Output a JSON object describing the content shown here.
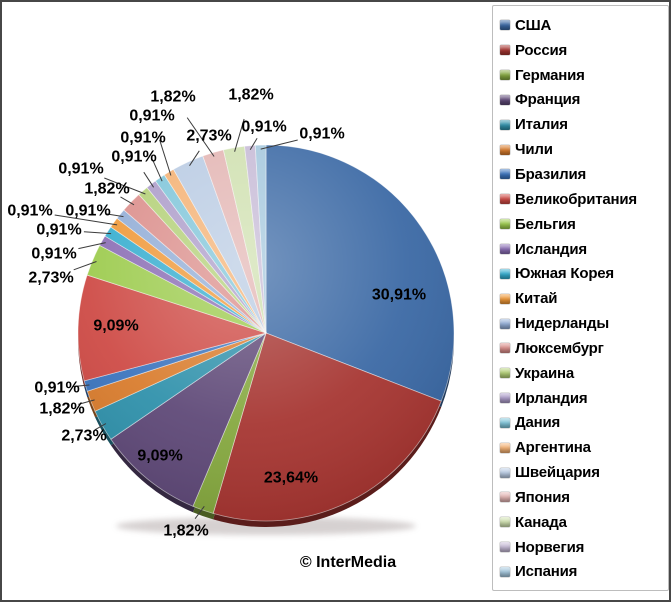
{
  "chart_data": {
    "type": "pie",
    "title": "",
    "legend_position": "right",
    "start_angle_deg": 0,
    "direction": "clockwise",
    "value_format": "percent_comma_decimal",
    "categories": [
      "США",
      "Россия",
      "Германия",
      "Франция",
      "Италия",
      "Чили",
      "Бразилия",
      "Великобритания",
      "Бельгия",
      "Исландия",
      "Южная Корея",
      "Китай",
      "Нидерланды",
      "Люксембург",
      "Украина",
      "Ирландия",
      "Дания",
      "Аргентина",
      "Швейцария",
      "Япония",
      "Канада",
      "Норвегия",
      "Испания"
    ],
    "values": [
      30.91,
      23.64,
      1.82,
      9.09,
      2.73,
      1.82,
      0.91,
      9.09,
      2.73,
      0.91,
      0.91,
      0.91,
      0.91,
      1.82,
      0.91,
      0.91,
      0.91,
      0.91,
      2.73,
      1.82,
      1.82,
      0.91,
      0.91
    ],
    "labels": [
      "30,91%",
      "23,64%",
      "1,82%",
      "9,09%",
      "2,73%",
      "1,82%",
      "0,91%",
      "9,09%",
      "2,73%",
      "0,91%",
      "0,91%",
      "0,91%",
      "0,91%",
      "1,82%",
      "0,91%",
      "0,91%",
      "0,91%",
      "0,91%",
      "2,73%",
      "1,82%",
      "1,82%",
      "0,91%",
      "0,91%"
    ],
    "colors": [
      "#3A68A4",
      "#A63531",
      "#85A83F",
      "#5E4877",
      "#2F91AB",
      "#D97C2D",
      "#3B74BE",
      "#CE4A45",
      "#9CCB4D",
      "#8A6DB4",
      "#35ADCF",
      "#EF9838",
      "#92ADD6",
      "#DB8E8B",
      "#B3D077",
      "#AC9CC9",
      "#7FC5D9",
      "#F4B173",
      "#B9CBE3",
      "#E3B5B3",
      "#CFE0AF",
      "#C6BAD6",
      "#A4C7DD"
    ]
  },
  "footer": {
    "copyright": "© InterMedia"
  }
}
